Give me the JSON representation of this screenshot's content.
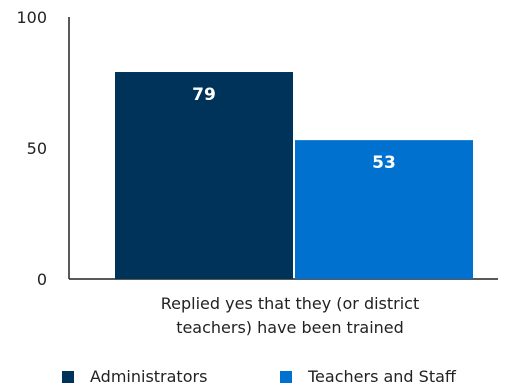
{
  "chart_data": {
    "type": "bar",
    "title": "",
    "xlabel": "",
    "ylabel": "",
    "categories": [
      "Replied yes that they (or district teachers) have been trained"
    ],
    "category_lines": [
      "Replied yes that they (or district",
      "teachers) have been trained"
    ],
    "series": [
      {
        "name": "Administrators",
        "values": [
          79
        ],
        "color": "#003359"
      },
      {
        "name": "Teachers and Staff",
        "values": [
          53
        ],
        "color": "#0071ce"
      }
    ],
    "ylim": [
      0,
      100
    ],
    "yticks": [
      0,
      50,
      100
    ],
    "data_labels": [
      "79",
      "53"
    ],
    "grid": false,
    "legend_position": "bottom"
  }
}
